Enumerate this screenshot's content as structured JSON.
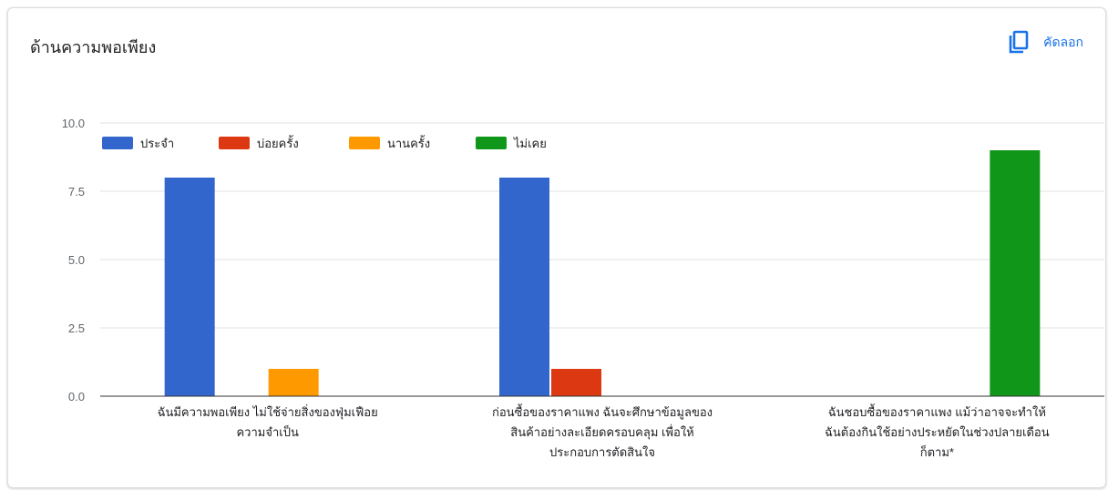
{
  "header": {
    "title": "ด้านความพอเพียง",
    "copy_label": "คัดลอก"
  },
  "icons": {
    "copy": "copy-icon"
  },
  "colors": {
    "series": [
      "#3366cc",
      "#dc3912",
      "#ff9900",
      "#109618"
    ],
    "grid": "#e0e0e0",
    "axis": "#333333"
  },
  "chart_data": {
    "type": "bar",
    "title": "ด้านความพอเพียง",
    "legend_position": "top-left",
    "grid": true,
    "ylim": [
      0,
      10
    ],
    "yticks": [
      "0.0",
      "2.5",
      "5.0",
      "7.5",
      "10.0"
    ],
    "categories": [
      [
        "ฉันมีความพอเพียง ไม่ใช้จ่ายสิ่งของฟุ่มเฟือย",
        "ความจำเป็น"
      ],
      [
        "ก่อนซื้อของราคาแพง ฉันจะศึกษาข้อมูลของ",
        "สินค้าอย่างละเอียดครอบคลุม เพื่อให้",
        "ประกอบการตัดสินใจ"
      ],
      [
        "ฉันชอบซื้อของราคาแพง แม้ว่าอาจจะทำให้",
        "ฉันต้องกินใช้อย่างประหยัดในช่วงปลายเดือน",
        "ก็ตาม*"
      ]
    ],
    "series": [
      {
        "name": "ประจำ",
        "values": [
          8,
          8,
          0
        ]
      },
      {
        "name": "บ่อยครั้ง",
        "values": [
          0,
          1,
          0
        ]
      },
      {
        "name": "นานครั้ง",
        "values": [
          1,
          0,
          0
        ]
      },
      {
        "name": "ไม่เคย",
        "values": [
          0,
          0,
          9
        ]
      }
    ]
  }
}
